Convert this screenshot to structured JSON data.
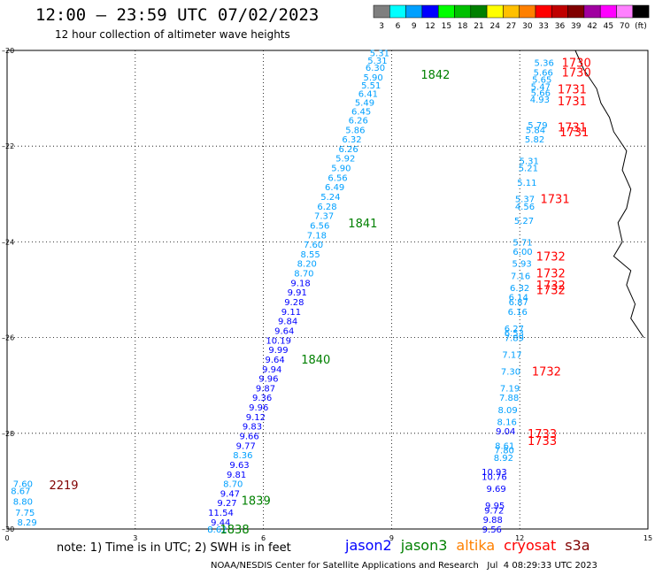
{
  "title": "12:00 – 23:59 UTC 07/02/2023",
  "subtitle": "12 hour collection of altimeter wave heights",
  "scale": {
    "labels": [
      "3",
      "6",
      "9",
      "12",
      "15",
      "18",
      "21",
      "24",
      "27",
      "30",
      "33",
      "36",
      "39",
      "42",
      "45",
      "70",
      "(ft)"
    ],
    "colors": [
      "#7f7f7f",
      "#00ffff",
      "#00a0ff",
      "#0000ff",
      "#00ff00",
      "#00c000",
      "#008000",
      "#ffff00",
      "#ffc000",
      "#ff8000",
      "#ff0000",
      "#c00000",
      "#800000",
      "#a000a0",
      "#ff00ff",
      "#ff80ff",
      "#000000"
    ]
  },
  "axes": {
    "x_ticks": [
      "0",
      "3",
      "6",
      "9",
      "12",
      "15"
    ],
    "y_ticks": [
      "20",
      "22",
      "24",
      "26",
      "28",
      "30"
    ]
  },
  "chart_data": {
    "type": "scatter",
    "x_range": [
      0,
      15
    ],
    "y_range": [
      20,
      30
    ],
    "coastline": [
      [
        13.3,
        20.0
      ],
      [
        13.5,
        20.4
      ],
      [
        13.8,
        20.8
      ],
      [
        13.9,
        21.1
      ],
      [
        14.1,
        21.4
      ],
      [
        14.2,
        21.7
      ],
      [
        14.5,
        22.1
      ],
      [
        14.4,
        22.5
      ],
      [
        14.6,
        22.9
      ],
      [
        14.5,
        23.3
      ],
      [
        14.3,
        23.6
      ],
      [
        14.4,
        24.0
      ],
      [
        14.2,
        24.3
      ],
      [
        14.6,
        24.6
      ],
      [
        14.5,
        24.9
      ],
      [
        14.7,
        25.3
      ],
      [
        14.6,
        25.6
      ],
      [
        14.9,
        26.0
      ]
    ],
    "points": [
      {
        "x": 8.95,
        "y": 20.05,
        "v": "5.31",
        "c": "#00a0ff"
      },
      {
        "x": 8.9,
        "y": 20.2,
        "v": "5.31",
        "c": "#00a0ff"
      },
      {
        "x": 8.85,
        "y": 20.35,
        "v": "6.30",
        "c": "#00a0ff"
      },
      {
        "x": 8.8,
        "y": 20.55,
        "v": "5.90",
        "c": "#00a0ff"
      },
      {
        "x": 8.75,
        "y": 20.72,
        "v": "5.51",
        "c": "#00a0ff"
      },
      {
        "x": 8.68,
        "y": 20.9,
        "v": "6.41",
        "c": "#00a0ff"
      },
      {
        "x": 8.6,
        "y": 21.08,
        "v": "5.49",
        "c": "#00a0ff"
      },
      {
        "x": 8.52,
        "y": 21.27,
        "v": "6.45",
        "c": "#00a0ff"
      },
      {
        "x": 8.45,
        "y": 21.45,
        "v": "6.26",
        "c": "#00a0ff"
      },
      {
        "x": 8.38,
        "y": 21.65,
        "v": "5.86",
        "c": "#00a0ff"
      },
      {
        "x": 8.3,
        "y": 21.85,
        "v": "6.32",
        "c": "#00a0ff"
      },
      {
        "x": 8.22,
        "y": 22.05,
        "v": "6.26",
        "c": "#00a0ff"
      },
      {
        "x": 8.15,
        "y": 22.25,
        "v": "5.92",
        "c": "#00a0ff"
      },
      {
        "x": 8.05,
        "y": 22.45,
        "v": "5.90",
        "c": "#00a0ff"
      },
      {
        "x": 7.97,
        "y": 22.65,
        "v": "6.56",
        "c": "#00a0ff"
      },
      {
        "x": 7.9,
        "y": 22.85,
        "v": "6.49",
        "c": "#00a0ff"
      },
      {
        "x": 7.8,
        "y": 23.05,
        "v": "5.24",
        "c": "#00a0ff"
      },
      {
        "x": 7.72,
        "y": 23.25,
        "v": "6.28",
        "c": "#00a0ff"
      },
      {
        "x": 7.65,
        "y": 23.45,
        "v": "7.37",
        "c": "#00a0ff"
      },
      {
        "x": 7.55,
        "y": 23.65,
        "v": "6.56",
        "c": "#00a0ff"
      },
      {
        "x": 7.48,
        "y": 23.85,
        "v": "7.18",
        "c": "#00a0ff"
      },
      {
        "x": 7.4,
        "y": 24.05,
        "v": "7.60",
        "c": "#00a0ff"
      },
      {
        "x": 7.33,
        "y": 24.25,
        "v": "8.55",
        "c": "#00a0ff"
      },
      {
        "x": 7.25,
        "y": 24.45,
        "v": "8.20",
        "c": "#00a0ff"
      },
      {
        "x": 7.18,
        "y": 24.65,
        "v": "8.70",
        "c": "#00a0ff"
      },
      {
        "x": 7.1,
        "y": 24.85,
        "v": "9.18",
        "c": "#0000ff"
      },
      {
        "x": 7.02,
        "y": 25.05,
        "v": "9.91",
        "c": "#0000ff"
      },
      {
        "x": 6.95,
        "y": 25.25,
        "v": "9.28",
        "c": "#0000ff"
      },
      {
        "x": 6.88,
        "y": 25.45,
        "v": "9.11",
        "c": "#0000ff"
      },
      {
        "x": 6.8,
        "y": 25.65,
        "v": "9.84",
        "c": "#0000ff"
      },
      {
        "x": 6.72,
        "y": 25.85,
        "v": "9.64",
        "c": "#0000ff"
      },
      {
        "x": 6.65,
        "y": 26.05,
        "v": "10.19",
        "c": "#0000ff"
      },
      {
        "x": 6.58,
        "y": 26.25,
        "v": "9.99",
        "c": "#0000ff"
      },
      {
        "x": 6.5,
        "y": 26.45,
        "v": "9.64",
        "c": "#0000ff"
      },
      {
        "x": 6.43,
        "y": 26.65,
        "v": "9.94",
        "c": "#0000ff"
      },
      {
        "x": 6.35,
        "y": 26.85,
        "v": "9.96",
        "c": "#0000ff"
      },
      {
        "x": 6.28,
        "y": 27.05,
        "v": "9.87",
        "c": "#0000ff"
      },
      {
        "x": 6.2,
        "y": 27.25,
        "v": "9.36",
        "c": "#0000ff"
      },
      {
        "x": 6.12,
        "y": 27.45,
        "v": "9.96",
        "c": "#0000ff"
      },
      {
        "x": 6.05,
        "y": 27.65,
        "v": "9.12",
        "c": "#0000ff"
      },
      {
        "x": 5.97,
        "y": 27.85,
        "v": "9.83",
        "c": "#0000ff"
      },
      {
        "x": 5.9,
        "y": 28.05,
        "v": "9.66",
        "c": "#0000ff"
      },
      {
        "x": 5.82,
        "y": 28.25,
        "v": "9.77",
        "c": "#0000ff"
      },
      {
        "x": 5.75,
        "y": 28.45,
        "v": "8.36",
        "c": "#00a0ff"
      },
      {
        "x": 5.67,
        "y": 28.65,
        "v": "9.63",
        "c": "#0000ff"
      },
      {
        "x": 5.6,
        "y": 28.85,
        "v": "9.81",
        "c": "#0000ff"
      },
      {
        "x": 5.52,
        "y": 29.05,
        "v": "8.70",
        "c": "#00a0ff"
      },
      {
        "x": 5.45,
        "y": 29.25,
        "v": "9.47",
        "c": "#0000ff"
      },
      {
        "x": 5.38,
        "y": 29.45,
        "v": "9.27",
        "c": "#0000ff"
      },
      {
        "x": 5.3,
        "y": 29.65,
        "v": "11.54",
        "c": "#0000ff"
      },
      {
        "x": 5.23,
        "y": 29.85,
        "v": "9.44",
        "c": "#0000ff"
      },
      {
        "x": 5.15,
        "y": 30.0,
        "v": "8.62",
        "c": "#00a0ff"
      },
      {
        "x": 12.8,
        "y": 20.25,
        "v": "5.36",
        "c": "#00a0ff"
      },
      {
        "x": 12.78,
        "y": 20.45,
        "v": "5.66",
        "c": "#00a0ff"
      },
      {
        "x": 12.75,
        "y": 20.6,
        "v": "5.65",
        "c": "#00a0ff"
      },
      {
        "x": 12.72,
        "y": 20.75,
        "v": "5.47",
        "c": "#00a0ff"
      },
      {
        "x": 12.72,
        "y": 20.88,
        "v": "5.66",
        "c": "#00a0ff"
      },
      {
        "x": 12.7,
        "y": 21.02,
        "v": "4.93",
        "c": "#00a0ff"
      },
      {
        "x": 12.65,
        "y": 21.55,
        "v": "5.79",
        "c": "#00a0ff"
      },
      {
        "x": 12.6,
        "y": 21.65,
        "v": "5.84",
        "c": "#00a0ff"
      },
      {
        "x": 12.58,
        "y": 21.85,
        "v": "5.82",
        "c": "#00a0ff"
      },
      {
        "x": 12.45,
        "y": 22.3,
        "v": "5.31",
        "c": "#00a0ff"
      },
      {
        "x": 12.43,
        "y": 22.45,
        "v": "5.21",
        "c": "#00a0ff"
      },
      {
        "x": 12.4,
        "y": 22.75,
        "v": "5.11",
        "c": "#00a0ff"
      },
      {
        "x": 12.35,
        "y": 23.1,
        "v": "5.37",
        "c": "#00a0ff"
      },
      {
        "x": 12.35,
        "y": 23.25,
        "v": "4.56",
        "c": "#00a0ff"
      },
      {
        "x": 12.33,
        "y": 23.55,
        "v": "5.27",
        "c": "#00a0ff"
      },
      {
        "x": 12.3,
        "y": 24.0,
        "v": "5.71",
        "c": "#00a0ff"
      },
      {
        "x": 12.3,
        "y": 24.2,
        "v": "6.00",
        "c": "#00a0ff"
      },
      {
        "x": 12.28,
        "y": 24.45,
        "v": "5.93",
        "c": "#00a0ff"
      },
      {
        "x": 12.25,
        "y": 24.7,
        "v": "7.16",
        "c": "#00a0ff"
      },
      {
        "x": 12.23,
        "y": 24.95,
        "v": "6.32",
        "c": "#00a0ff"
      },
      {
        "x": 12.2,
        "y": 25.15,
        "v": "6.14",
        "c": "#00a0ff"
      },
      {
        "x": 12.2,
        "y": 25.25,
        "v": "6.87",
        "c": "#00a0ff"
      },
      {
        "x": 12.18,
        "y": 25.45,
        "v": "6.16",
        "c": "#00a0ff"
      },
      {
        "x": 12.1,
        "y": 25.8,
        "v": "6.27",
        "c": "#00a0ff"
      },
      {
        "x": 12.1,
        "y": 25.9,
        "v": "6.53",
        "c": "#00a0ff"
      },
      {
        "x": 12.1,
        "y": 26.0,
        "v": "7.89",
        "c": "#00a0ff"
      },
      {
        "x": 12.05,
        "y": 26.35,
        "v": "7.17",
        "c": "#00a0ff"
      },
      {
        "x": 12.02,
        "y": 26.7,
        "v": "7.30",
        "c": "#00a0ff"
      },
      {
        "x": 12.0,
        "y": 27.05,
        "v": "7.19",
        "c": "#00a0ff"
      },
      {
        "x": 11.98,
        "y": 27.25,
        "v": "7.88",
        "c": "#00a0ff"
      },
      {
        "x": 11.95,
        "y": 27.5,
        "v": "8.09",
        "c": "#00a0ff"
      },
      {
        "x": 11.93,
        "y": 27.75,
        "v": "8.16",
        "c": "#00a0ff"
      },
      {
        "x": 11.9,
        "y": 27.95,
        "v": "9.04",
        "c": "#0000ff"
      },
      {
        "x": 11.88,
        "y": 28.25,
        "v": "8.61",
        "c": "#00a0ff"
      },
      {
        "x": 11.87,
        "y": 28.35,
        "v": "7.80",
        "c": "#00a0ff"
      },
      {
        "x": 11.85,
        "y": 28.5,
        "v": "8.92",
        "c": "#00a0ff"
      },
      {
        "x": 11.7,
        "y": 28.8,
        "v": "10.93",
        "c": "#0000ff"
      },
      {
        "x": 11.7,
        "y": 28.9,
        "v": "10.76",
        "c": "#0000ff"
      },
      {
        "x": 11.68,
        "y": 29.15,
        "v": "9.69",
        "c": "#0000ff"
      },
      {
        "x": 11.65,
        "y": 29.5,
        "v": "9.95",
        "c": "#0000ff"
      },
      {
        "x": 11.63,
        "y": 29.6,
        "v": "9.72",
        "c": "#0000ff"
      },
      {
        "x": 11.6,
        "y": 29.8,
        "v": "9.88",
        "c": "#0000ff"
      },
      {
        "x": 11.58,
        "y": 30.0,
        "v": "9.56",
        "c": "#0000ff"
      },
      {
        "x": 0.6,
        "y": 29.05,
        "v": "7.60",
        "c": "#00a0ff"
      },
      {
        "x": 0.55,
        "y": 29.2,
        "v": "8.67",
        "c": "#00a0ff"
      },
      {
        "x": 0.6,
        "y": 29.42,
        "v": "8.80",
        "c": "#00a0ff"
      },
      {
        "x": 0.65,
        "y": 29.65,
        "v": "7.75",
        "c": "#00a0ff"
      },
      {
        "x": 0.7,
        "y": 29.85,
        "v": "8.29",
        "c": "#00a0ff"
      }
    ],
    "times": [
      {
        "x": 9.6,
        "y": 20.5,
        "t": "1842",
        "c": "#008000"
      },
      {
        "x": 7.9,
        "y": 23.6,
        "t": "1841",
        "c": "#008000"
      },
      {
        "x": 6.8,
        "y": 26.45,
        "t": "1840",
        "c": "#008000"
      },
      {
        "x": 5.4,
        "y": 29.4,
        "t": "1839",
        "c": "#008000"
      },
      {
        "x": 4.9,
        "y": 30.0,
        "t": "1838",
        "c": "#008000"
      },
      {
        "x": 12.9,
        "y": 20.25,
        "t": "1730",
        "c": "#ff0000"
      },
      {
        "x": 12.9,
        "y": 20.45,
        "t": "1730",
        "c": "#ff0000"
      },
      {
        "x": 12.8,
        "y": 20.8,
        "t": "1731",
        "c": "#ff0000"
      },
      {
        "x": 12.8,
        "y": 21.05,
        "t": "1731",
        "c": "#ff0000"
      },
      {
        "x": 12.8,
        "y": 21.6,
        "t": "1731",
        "c": "#ff0000"
      },
      {
        "x": 12.85,
        "y": 21.7,
        "t": "1731",
        "c": "#ff0000"
      },
      {
        "x": 12.4,
        "y": 23.1,
        "t": "1731",
        "c": "#ff0000"
      },
      {
        "x": 12.3,
        "y": 24.3,
        "t": "1732",
        "c": "#ff0000"
      },
      {
        "x": 12.3,
        "y": 24.65,
        "t": "1732",
        "c": "#ff0000"
      },
      {
        "x": 12.3,
        "y": 24.9,
        "t": "1732",
        "c": "#ff0000"
      },
      {
        "x": 12.3,
        "y": 25.0,
        "t": "1732",
        "c": "#ff0000"
      },
      {
        "x": 12.2,
        "y": 26.7,
        "t": "1732",
        "c": "#ff0000"
      },
      {
        "x": 12.1,
        "y": 28.0,
        "t": "1733",
        "c": "#ff0000"
      },
      {
        "x": 12.1,
        "y": 28.15,
        "t": "1733",
        "c": "#ff0000"
      },
      {
        "x": 0.9,
        "y": 29.08,
        "t": "2219",
        "c": "#800000"
      }
    ]
  },
  "note": "note: 1) Time is in UTC; 2) SWH is in feet",
  "satellites": [
    {
      "name": "jason2",
      "color": "#0000ff"
    },
    {
      "name": "jason3",
      "color": "#008000"
    },
    {
      "name": "altika",
      "color": "#ff8000"
    },
    {
      "name": "cryosat",
      "color": "#ff0000"
    },
    {
      "name": "s3a",
      "color": "#800000"
    }
  ],
  "footer": "NOAA/NESDIS Center for Satellite Applications and Research   Jul  4 08:29:33 UTC 2023"
}
